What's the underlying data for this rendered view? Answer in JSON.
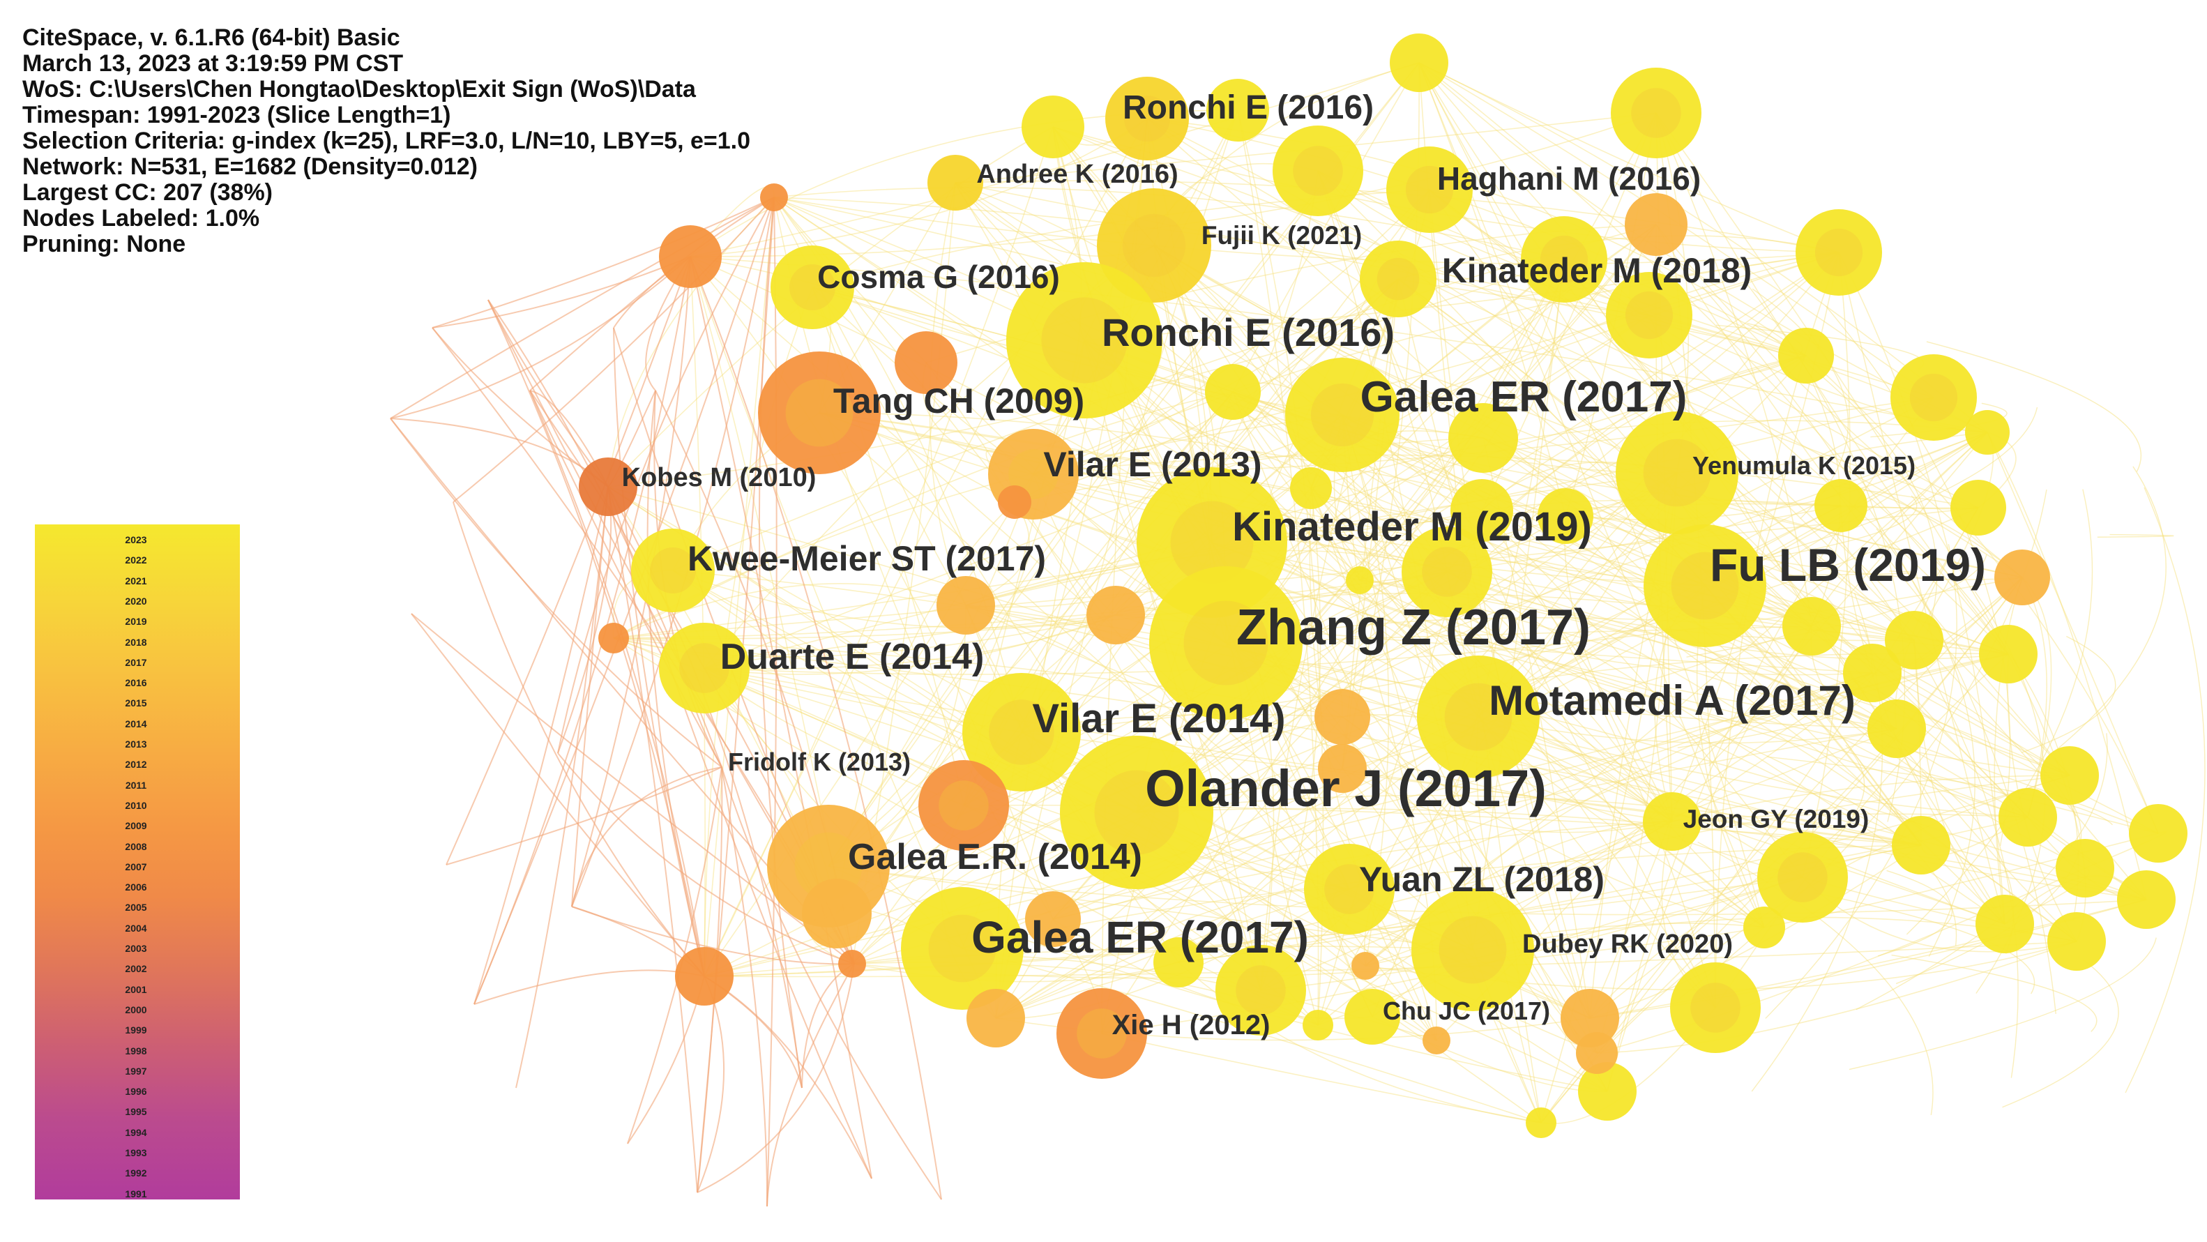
{
  "info": {
    "line1": "CiteSpace, v. 6.1.R6 (64-bit) Basic",
    "line2": "March 13, 2023 at 3:19:59 PM CST",
    "line3": "WoS: C:\\Users\\Chen Hongtao\\Desktop\\Exit Sign (WoS)\\Data",
    "line4": "Timespan: 1991-2023 (Slice Length=1)",
    "line5": "Selection Criteria: g-index (k=25), LRF=3.0, L/N=10, LBY=5, e=1.0",
    "line6": "Network: N=531, E=1682 (Density=0.012)",
    "line7": "Largest CC: 207 (38%)",
    "line8": "Nodes Labeled: 1.0%",
    "line9": "Pruning: None"
  },
  "legend": {
    "years": [
      "2023",
      "2022",
      "2021",
      "2020",
      "2019",
      "2018",
      "2017",
      "2016",
      "2015",
      "2014",
      "2013",
      "2012",
      "2011",
      "2010",
      "2009",
      "2008",
      "2007",
      "2006",
      "2005",
      "2004",
      "2003",
      "2002",
      "2001",
      "2000",
      "1999",
      "1998",
      "1997",
      "1996",
      "1995",
      "1994",
      "1993",
      "1992",
      "1991"
    ]
  },
  "labels": {
    "ronchi_2016_top": "Ronchi E (2016)",
    "andree_2016": "Andree K (2016)",
    "haghani_2016": "Haghani M (2016)",
    "fujii_2021": "Fujii K (2021)",
    "cosma_2016": "Cosma G (2016)",
    "kinateder_2018": "Kinateder M (2018)",
    "ronchi_2016_mid": "Ronchi E (2016)",
    "galea_2017_top": "Galea ER (2017)",
    "tang_2009": "Tang CH (2009)",
    "kobes_2010": "Kobes M (2010)",
    "vilar_2013": "Vilar E (2013)",
    "yenumula_2015": "Yenumula K (2015)",
    "kinateder_2019": "Kinateder M (2019)",
    "kwee_2017": "Kwee-Meier ST (2017)",
    "fu_2019": "Fu LB (2019)",
    "zhang_2017": "Zhang Z (2017)",
    "duarte_2014": "Duarte E (2014)",
    "motamedi_2017": "Motamedi A (2017)",
    "vilar_2014": "Vilar E (2014)",
    "fridolf_2013": "Fridolf K (2013)",
    "olander_2017": "Olander J (2017)",
    "jeon_2019": "Jeon GY (2019)",
    "galea_2014": "Galea E.R. (2014)",
    "yuan_2018": "Yuan ZL (2018)",
    "galea_2017_bottom": "Galea ER (2017)",
    "dubey_2020": "Dubey RK (2020)",
    "xie_2012": "Xie H (2012)",
    "chu_2017": "Chu JC (2017)"
  },
  "colors": {
    "yellow": "#f5e62a",
    "yellow_mid": "#f7d52c",
    "orange_light": "#f9b545",
    "orange": "#f5943f",
    "orange_dark": "#e87a3a",
    "edge_yellow": "#f6e07a",
    "edge_orange": "#f2a779"
  }
}
